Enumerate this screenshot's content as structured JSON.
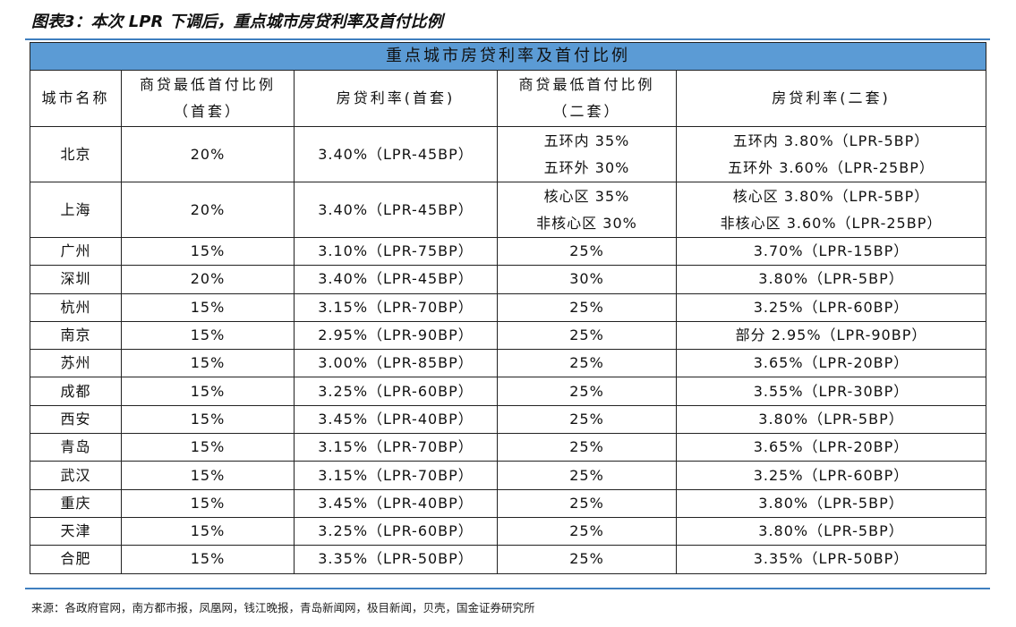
{
  "figure_title": "图表3：本次 LPR 下调后，重点城市房贷利率及首付比例",
  "table": {
    "caption": "重点城市房贷利率及首付比例",
    "headers": [
      [
        "城市名称"
      ],
      [
        "商贷最低首付比例",
        "（首套）"
      ],
      [
        "房贷利率(首套)"
      ],
      [
        "商贷最低首付比例",
        "（二套）"
      ],
      [
        "房贷利率(二套)"
      ]
    ],
    "rows": [
      {
        "city": "北京",
        "dp1": "20%",
        "rate1": "3.40%（LPR-45BP）",
        "dp2": [
          "五环内 35%",
          "五环外 30%"
        ],
        "rate2": [
          "五环内 3.80%（LPR-5BP）",
          "五环外 3.60%（LPR-25BP）"
        ]
      },
      {
        "city": "上海",
        "dp1": "20%",
        "rate1": "3.40%（LPR-45BP）",
        "dp2": [
          "核心区 35%",
          "非核心区 30%"
        ],
        "rate2": [
          "核心区 3.80%（LPR-5BP）",
          "非核心区 3.60%（LPR-25BP）"
        ]
      },
      {
        "city": "广州",
        "dp1": "15%",
        "rate1": "3.10%（LPR-75BP）",
        "dp2": [
          "25%"
        ],
        "rate2": [
          "3.70%（LPR-15BP）"
        ]
      },
      {
        "city": "深圳",
        "dp1": "20%",
        "rate1": "3.40%（LPR-45BP）",
        "dp2": [
          "30%"
        ],
        "rate2": [
          "3.80%（LPR-5BP）"
        ]
      },
      {
        "city": "杭州",
        "dp1": "15%",
        "rate1": "3.15%（LPR-70BP）",
        "dp2": [
          "25%"
        ],
        "rate2": [
          "3.25%（LPR-60BP）"
        ]
      },
      {
        "city": "南京",
        "dp1": "15%",
        "rate1": "2.95%（LPR-90BP）",
        "dp2": [
          "25%"
        ],
        "rate2": [
          "部分 2.95%（LPR-90BP）"
        ]
      },
      {
        "city": "苏州",
        "dp1": "15%",
        "rate1": "3.00%（LPR-85BP）",
        "dp2": [
          "25%"
        ],
        "rate2": [
          "3.65%（LPR-20BP）"
        ]
      },
      {
        "city": "成都",
        "dp1": "15%",
        "rate1": "3.25%（LPR-60BP）",
        "dp2": [
          "25%"
        ],
        "rate2": [
          "3.55%（LPR-30BP）"
        ]
      },
      {
        "city": "西安",
        "dp1": "15%",
        "rate1": "3.45%（LPR-40BP）",
        "dp2": [
          "25%"
        ],
        "rate2": [
          "3.80%（LPR-5BP）"
        ]
      },
      {
        "city": "青岛",
        "dp1": "15%",
        "rate1": "3.15%（LPR-70BP）",
        "dp2": [
          "25%"
        ],
        "rate2": [
          "3.65%（LPR-20BP）"
        ]
      },
      {
        "city": "武汉",
        "dp1": "15%",
        "rate1": "3.15%（LPR-70BP）",
        "dp2": [
          "25%"
        ],
        "rate2": [
          "3.25%（LPR-60BP）"
        ]
      },
      {
        "city": "重庆",
        "dp1": "15%",
        "rate1": "3.45%（LPR-40BP）",
        "dp2": [
          "25%"
        ],
        "rate2": [
          "3.80%（LPR-5BP）"
        ]
      },
      {
        "city": "天津",
        "dp1": "15%",
        "rate1": "3.25%（LPR-60BP）",
        "dp2": [
          "25%"
        ],
        "rate2": [
          "3.80%（LPR-5BP）"
        ]
      },
      {
        "city": "合肥",
        "dp1": "15%",
        "rate1": "3.35%（LPR-50BP）",
        "dp2": [
          "25%"
        ],
        "rate2": [
          "3.35%（LPR-50BP）"
        ]
      }
    ]
  },
  "source": "来源：各政府官网，南方都市报，凤凰网，钱江晚报，青岛新闻网，极目新闻，贝壳，国金证券研究所",
  "colors": {
    "caption_bg": "#5b9bd5",
    "rule": "#3f7fbf"
  }
}
